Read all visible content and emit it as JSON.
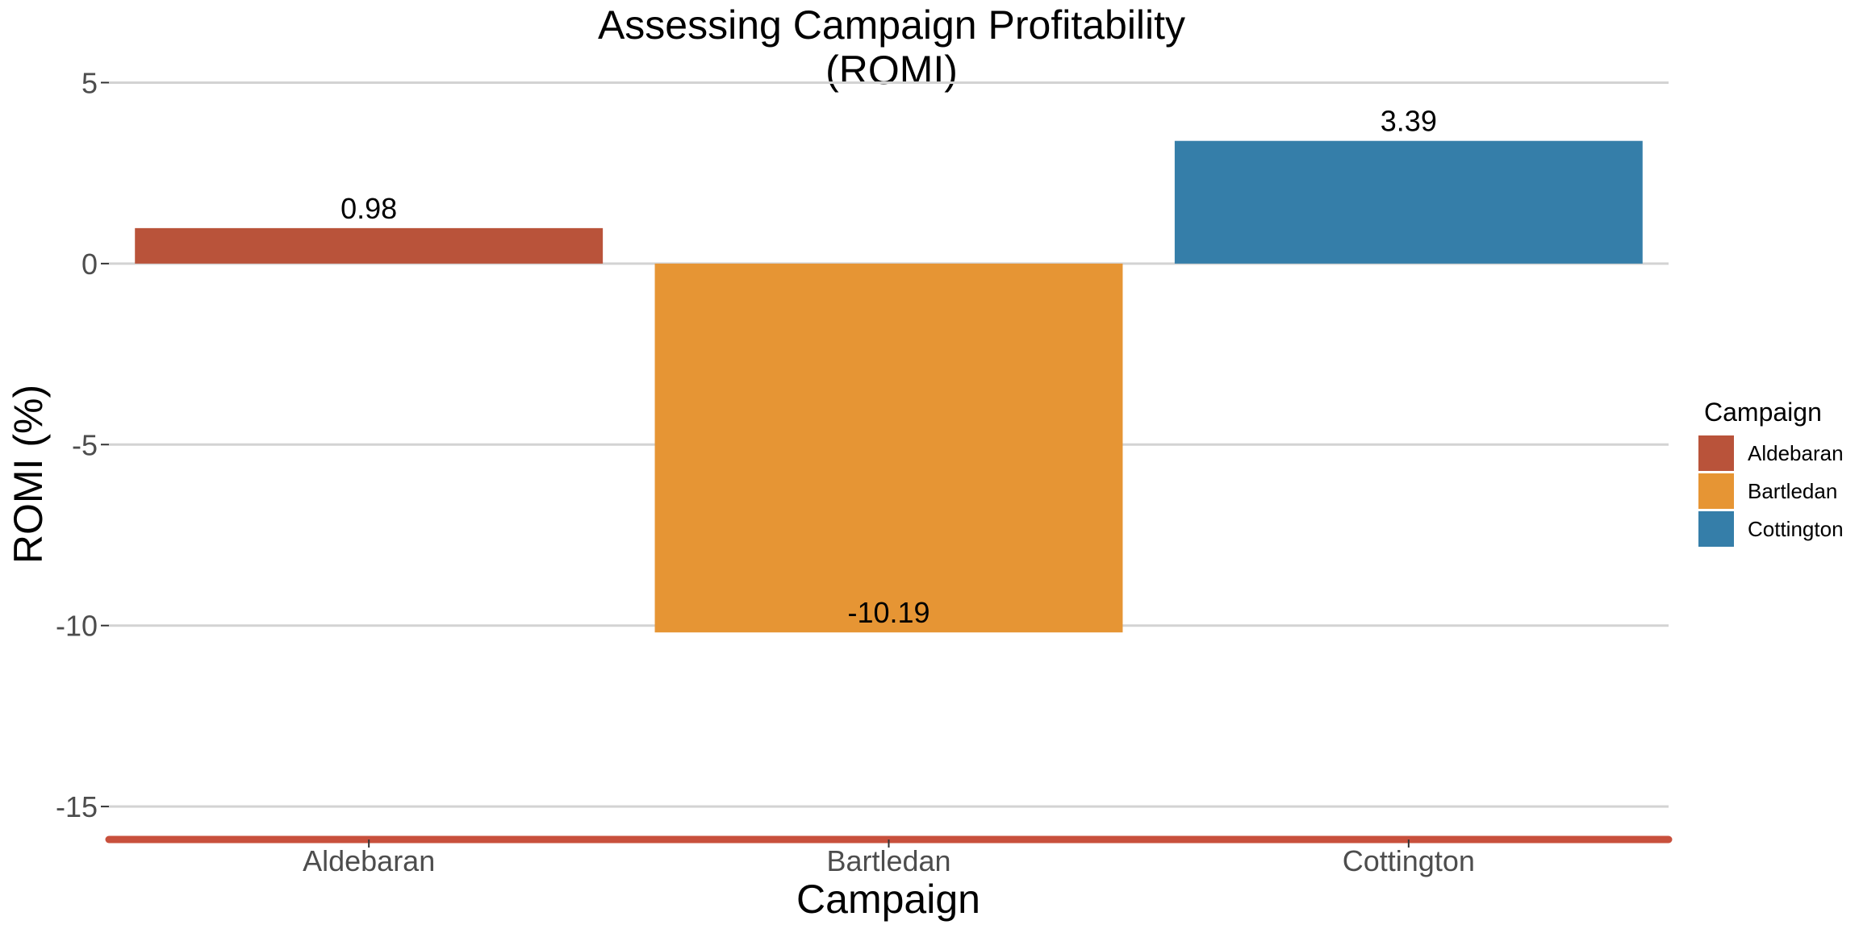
{
  "chart_data": {
    "type": "bar",
    "title": "Assessing Campaign Profitability (ROMI)",
    "title_lines": [
      "Assessing Campaign Profitability",
      "(ROMI)"
    ],
    "xlabel": "Campaign",
    "ylabel": "ROMI (%)",
    "categories": [
      "Aldebaran",
      "Bartledan",
      "Cottington"
    ],
    "values": [
      0.98,
      -10.19,
      3.39
    ],
    "data_labels": [
      "0.98",
      "-10.19",
      "3.39"
    ],
    "colors": [
      "#b9533a",
      "#e69534",
      "#357ea9"
    ],
    "ylim": [
      -16,
      5.5
    ],
    "yticks": [
      5,
      0,
      -5,
      -10,
      -15
    ],
    "ytick_labels": [
      "5",
      "0",
      "-5",
      "-10",
      "-15"
    ],
    "grid": true,
    "baseline_color": "#c8503c",
    "legend": {
      "title": "Campaign",
      "position": "right",
      "items": [
        "Aldebaran",
        "Bartledan",
        "Cottington"
      ]
    }
  }
}
